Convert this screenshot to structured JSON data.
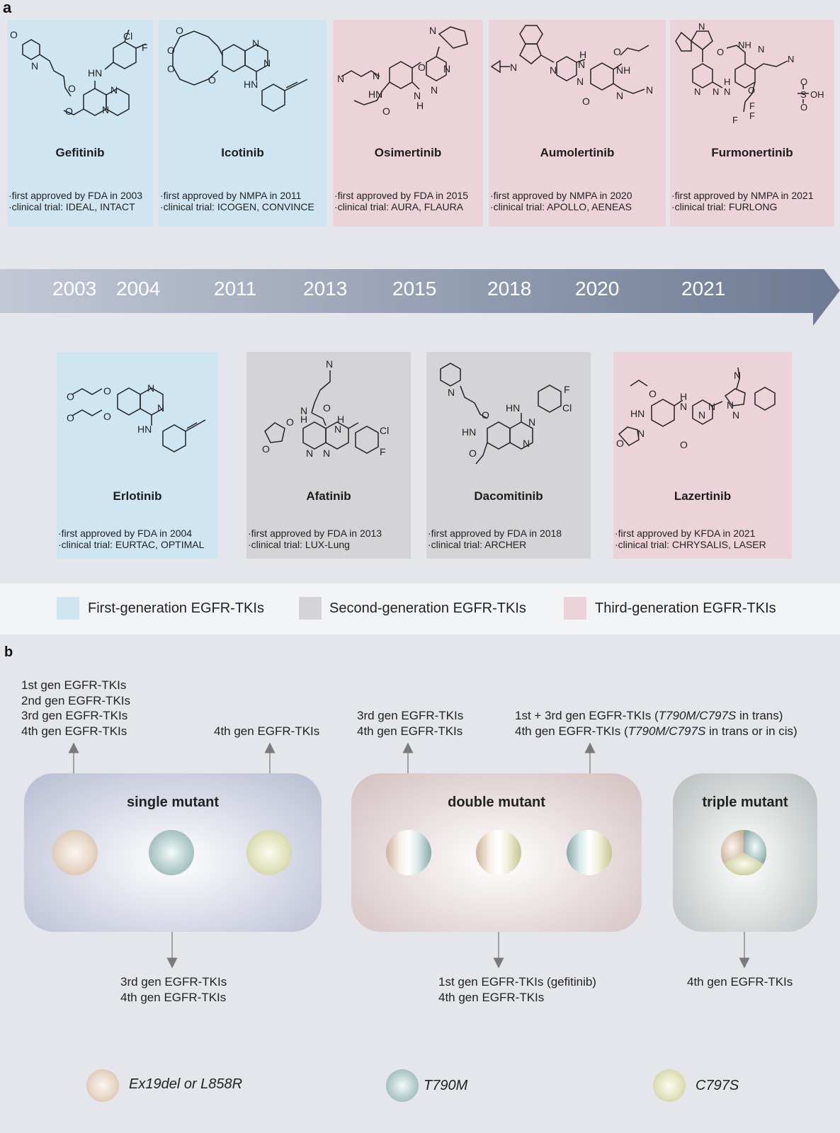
{
  "panel_a": {
    "letter": "a",
    "top_cards": [
      {
        "name": "Gefitinib",
        "generation": "first",
        "line1": "·first approved by FDA in 2003",
        "line2": "·clinical trial: IDEAL, INTACT"
      },
      {
        "name": "Icotinib",
        "generation": "first",
        "line1": "·first approved by NMPA in 2011",
        "line2": "·clinical trial: ICOGEN, CONVINCE"
      },
      {
        "name": "Osimertinib",
        "generation": "third",
        "line1": "·first approved by FDA in 2015",
        "line2": "·clinical trial: AURA, FLAURA"
      },
      {
        "name": "Aumolertinib",
        "generation": "third",
        "line1": "·first approved by NMPA in 2020",
        "line2": "·clinical trial: APOLLO, AENEAS"
      },
      {
        "name": "Furmonertinib",
        "generation": "third",
        "line1": "·first approved by NMPA in 2021",
        "line2": "·clinical trial: FURLONG"
      }
    ],
    "bottom_cards": [
      {
        "name": "Erlotinib",
        "generation": "first",
        "line1": "·first approved by FDA in 2004",
        "line2": "·clinical trial: EURTAC, OPTIMAL"
      },
      {
        "name": "Afatinib",
        "generation": "second",
        "line1": "·first approved by FDA in 2013",
        "line2": "·clinical trial: LUX-Lung"
      },
      {
        "name": "Dacomitinib",
        "generation": "second",
        "line1": "·first approved by FDA in 2018",
        "line2": "·clinical trial: ARCHER"
      },
      {
        "name": "Lazertinib",
        "generation": "third",
        "line1": "·first approved by KFDA in 2021",
        "line2": "·clinical trial: CHRYSALIS, LASER"
      }
    ],
    "years": [
      "2003",
      "2004",
      "2011",
      "2013",
      "2015",
      "2018",
      "2020",
      "2021"
    ],
    "legend": [
      "First-generation EGFR-TKIs",
      "Second-generation EGFR-TKIs",
      "Third-generation EGFR-TKIs"
    ],
    "colors": {
      "first": "#cfe6f2",
      "second": "#d4d4d6",
      "third": "#ebd3d9",
      "arrow_start": "#c2c8d6",
      "arrow_end": "#6d7a93"
    },
    "atom_labels": {
      "gefitinib": [
        "O",
        "N",
        "Cl",
        "F",
        "HN",
        "O",
        "O",
        "N",
        "N"
      ],
      "icotinib": [
        "O",
        "O",
        "O",
        "O",
        "N",
        "N",
        "HN"
      ],
      "osimertinib": [
        "N",
        "O",
        "N",
        "N",
        "N",
        "N",
        "HN",
        "N",
        "H",
        "O"
      ],
      "aumolertinib": [
        "N",
        "N",
        "N",
        "H",
        "N",
        "O",
        "NH",
        "N",
        "N",
        "O"
      ],
      "furmonertinib": [
        "N",
        "O",
        "NH",
        "N",
        "N",
        "N",
        "N",
        "H",
        "N",
        "O",
        "F",
        "F",
        "F",
        "O",
        "S",
        "OH",
        "O"
      ],
      "erlotinib": [
        "O",
        "O",
        "O",
        "O",
        "N",
        "N",
        "HN"
      ],
      "afatinib": [
        "N",
        "N",
        "H",
        "O",
        "O",
        "O",
        "N",
        "N",
        "H",
        "N",
        "Cl",
        "F"
      ],
      "dacomitinib": [
        "N",
        "O",
        "HN",
        "HN",
        "N",
        "N",
        "O",
        "F",
        "Cl"
      ],
      "lazertinib": [
        "N",
        "O",
        "HN",
        "H",
        "N",
        "N",
        "N",
        "N",
        "N",
        "N",
        "O",
        "O"
      ]
    }
  },
  "panel_b": {
    "letter": "b",
    "boxes": [
      {
        "title": "single mutant"
      },
      {
        "title": "double mutant"
      },
      {
        "title": "triple mutant"
      }
    ],
    "labels": {
      "single_up_left": [
        "1st gen EGFR-TKIs",
        "2nd gen EGFR-TKIs",
        "3rd gen EGFR-TKIs",
        "4th gen EGFR-TKIs"
      ],
      "single_up_right": [
        "4th gen EGFR-TKIs"
      ],
      "single_down": [
        "3rd gen EGFR-TKIs",
        "4th gen EGFR-TKIs"
      ],
      "double_up_left": [
        "3rd gen EGFR-TKIs",
        "4th gen EGFR-TKIs"
      ],
      "double_up_right": {
        "line1_pre": "1st + 3rd gen EGFR-TKIs (",
        "line1_it": "T790M/C797S",
        "line1_post": " in trans)",
        "line2_pre": "4th gen EGFR-TKIs (",
        "line2_it": "T790M/C797S",
        "line2_post": " in trans or in cis)"
      },
      "double_down": [
        "1st gen EGFR-TKIs (gefitinib)",
        "4th gen EGFR-TKIs"
      ],
      "triple_down": [
        "4th gen EGFR-TKIs"
      ]
    },
    "legend": [
      "Ex19del or L858R",
      "T790M",
      "C797S"
    ],
    "colors": {
      "ex19": "#d8c3b0",
      "t790m": "#9fbbbb",
      "c797s": "#d6d6a8",
      "single_box": "#b6bcd2",
      "double_box": "#d8c7c7",
      "triple_box": "#b6bfbd"
    }
  }
}
